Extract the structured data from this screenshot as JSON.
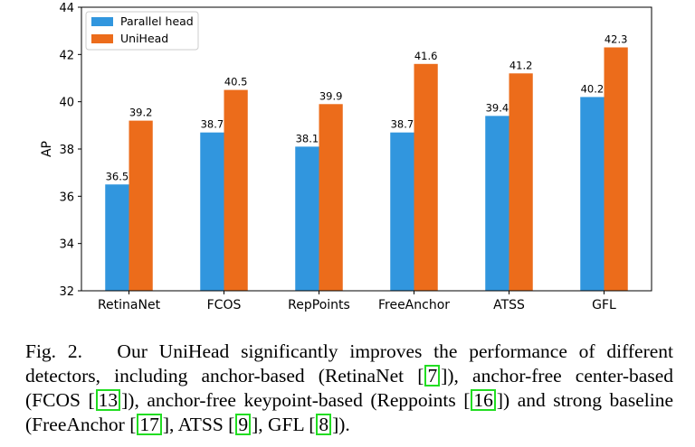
{
  "chart_data": {
    "type": "bar",
    "categories": [
      "RetinaNet",
      "FCOS",
      "RepPoints",
      "FreeAnchor",
      "ATSS",
      "GFL"
    ],
    "series": [
      {
        "name": "Parallel head",
        "values": [
          36.5,
          38.7,
          38.1,
          38.7,
          39.4,
          40.2
        ],
        "color": "#3196de",
        "labels": [
          "36.5",
          "38.7",
          "38.1",
          "38.7",
          "39.4",
          "40.2"
        ]
      },
      {
        "name": "UniHead",
        "values": [
          39.2,
          40.5,
          39.9,
          41.6,
          41.2,
          42.3
        ],
        "color": "#ec6c1b",
        "labels": [
          "39.2",
          "40.5",
          "39.9",
          "41.6",
          "41.2",
          "42.3"
        ]
      }
    ],
    "ylabel": "AP",
    "xlabel": "",
    "ylim": [
      32,
      44
    ],
    "yticks": [
      "32",
      "34",
      "36",
      "38",
      "40",
      "42",
      "44"
    ],
    "legend_position": "top-left",
    "grid": false
  },
  "caption": {
    "label": "Fig. 2.",
    "p1": "Our UniHead significantly improves the performance of different detectors, including anchor-based (RetinaNet [",
    "c1": "7",
    "p2": "]), anchor-free center-based (FCOS [",
    "c2": "13",
    "p3": "]), anchor-free keypoint-based (Reppoints [",
    "c3": "16",
    "p4": "]) and strong baseline (FreeAnchor [",
    "c4": "17",
    "p5": "], ATSS [",
    "c5": "9",
    "p6": "], GFL [",
    "c6": "8",
    "p7": "])."
  }
}
